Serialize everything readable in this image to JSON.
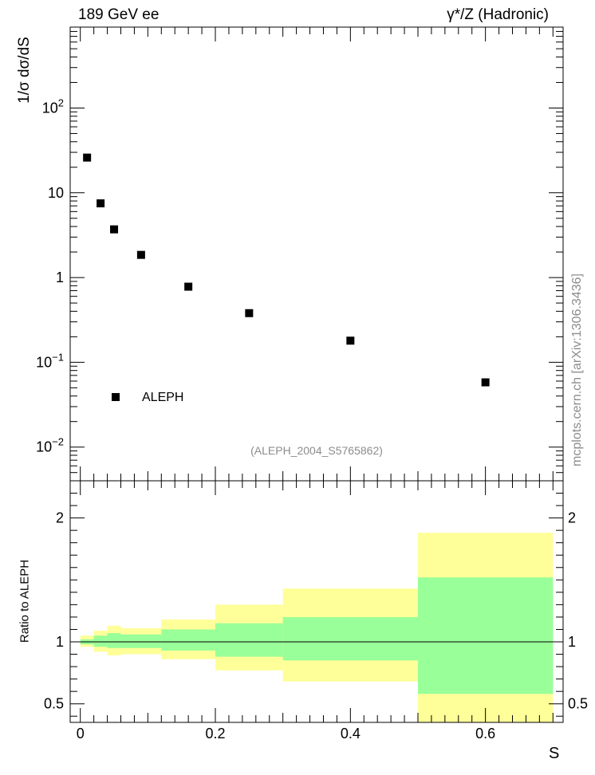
{
  "header": {
    "left": "189 GeV ee",
    "right": "γ*/Z (Hadronic)"
  },
  "side_note": "mcplots.cern.ch [arXiv:1306.3436]",
  "chart_data": [
    {
      "type": "scatter",
      "title": "",
      "ylabel": "1/σ  dσ/dS",
      "xlabel": "",
      "yscale": "log",
      "ylim": [
        0.004,
        900
      ],
      "xlim": [
        -0.015,
        0.715
      ],
      "y_ticks": [
        {
          "value": 0.01,
          "label": "10^-2"
        },
        {
          "value": 0.1,
          "label": "10^-1"
        },
        {
          "value": 1,
          "label": "1"
        },
        {
          "value": 10,
          "label": "10"
        },
        {
          "value": 100,
          "label": "10^2"
        }
      ],
      "legend": {
        "entries": [
          "ALEPH"
        ],
        "placement": "bottom-left"
      },
      "annotation": "(ALEPH_2004_S5765862)",
      "series": [
        {
          "name": "ALEPH",
          "marker": "square",
          "color": "#000000",
          "x": [
            0.01,
            0.03,
            0.05,
            0.09,
            0.16,
            0.25,
            0.4,
            0.6
          ],
          "y": [
            26,
            7.5,
            3.7,
            1.85,
            0.78,
            0.38,
            0.18,
            0.058
          ]
        }
      ]
    },
    {
      "type": "area",
      "title": "",
      "ylabel": "Ratio to ALEPH",
      "xlabel": "S",
      "ylim": [
        0.35,
        2.3
      ],
      "xlim": [
        -0.015,
        0.715
      ],
      "y_ticks": [
        0.5,
        1,
        2
      ],
      "x_ticks": [
        0,
        0.2,
        0.4,
        0.6
      ],
      "reference_line": 1,
      "colors": {
        "inner": "#99ff99",
        "outer": "#ffff99"
      },
      "bins": [
        {
          "lo": 0.0,
          "hi": 0.02,
          "inner": [
            0.98,
            1.02
          ],
          "outer": [
            0.96,
            1.05
          ]
        },
        {
          "lo": 0.02,
          "hi": 0.04,
          "inner": [
            0.96,
            1.05
          ],
          "outer": [
            0.92,
            1.09
          ]
        },
        {
          "lo": 0.04,
          "hi": 0.06,
          "inner": [
            0.95,
            1.07
          ],
          "outer": [
            0.89,
            1.13
          ]
        },
        {
          "lo": 0.06,
          "hi": 0.12,
          "inner": [
            0.95,
            1.06
          ],
          "outer": [
            0.9,
            1.11
          ]
        },
        {
          "lo": 0.12,
          "hi": 0.2,
          "inner": [
            0.93,
            1.1
          ],
          "outer": [
            0.86,
            1.18
          ]
        },
        {
          "lo": 0.2,
          "hi": 0.3,
          "inner": [
            0.88,
            1.15
          ],
          "outer": [
            0.77,
            1.3
          ]
        },
        {
          "lo": 0.3,
          "hi": 0.5,
          "inner": [
            0.85,
            1.2
          ],
          "outer": [
            0.68,
            1.43
          ]
        },
        {
          "lo": 0.5,
          "hi": 0.7,
          "inner": [
            0.58,
            1.52
          ],
          "outer": [
            0.34,
            1.88
          ]
        }
      ]
    }
  ]
}
